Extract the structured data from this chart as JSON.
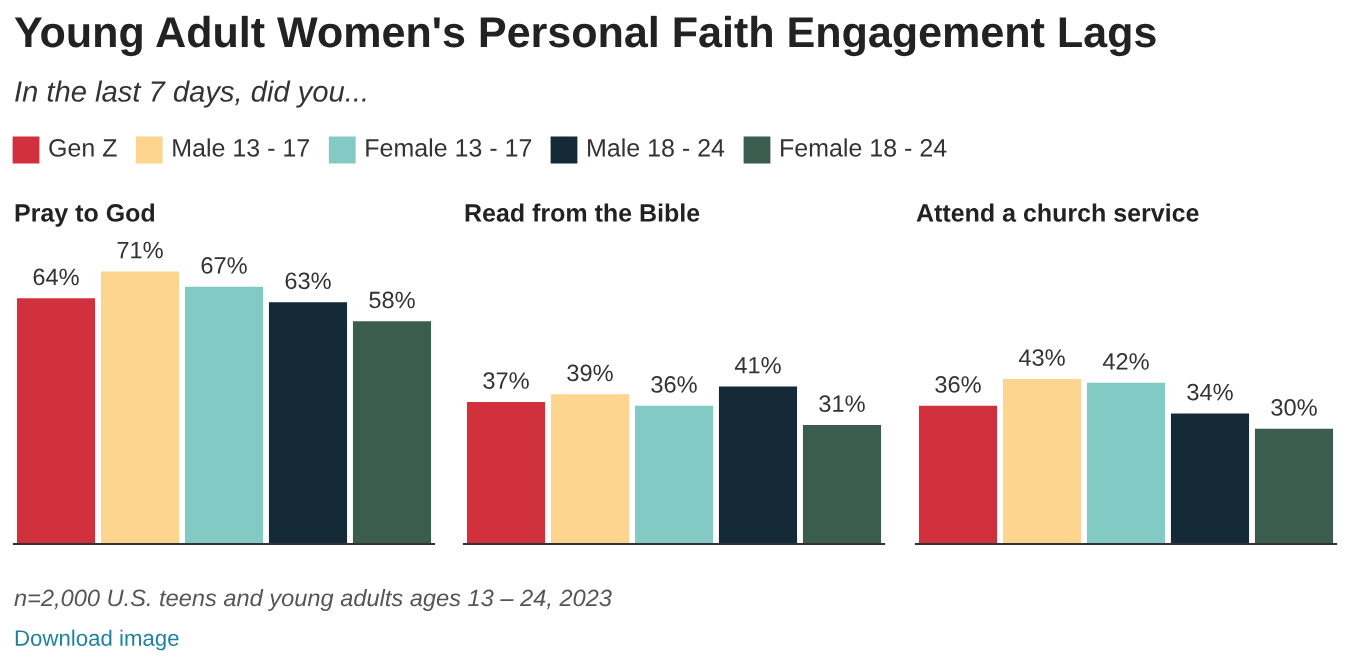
{
  "chart_data": [
    {
      "type": "other",
      "title": "Young Adult Women's Personal Faith Engagement Lags",
      "subtitle": "In the last 7 days, did you...",
      "annotations": [
        "n=2,000 U.S. teens and young adults ages 13 – 24, 2023",
        "Download image"
      ]
    },
    {
      "type": "bar",
      "title": "Pray to God",
      "categories": [
        null
      ],
      "legend": "top",
      "series": [
        {
          "name": "Gen Z",
          "color": "#d1313d",
          "values": [
            64
          ],
          "value_labels": [
            "64%"
          ]
        },
        {
          "name": "Male 13 - 17",
          "color": "#fdd58f",
          "values": [
            71
          ],
          "value_labels": [
            "71%"
          ]
        },
        {
          "name": "Female 13 - 17",
          "color": "#84cac4",
          "values": [
            67
          ],
          "value_labels": [
            "67%"
          ]
        },
        {
          "name": "Male 18 - 24",
          "color": "#142a36",
          "values": [
            63
          ],
          "value_labels": [
            "63%"
          ]
        },
        {
          "name": "Female 18 - 24",
          "color": "#3a5d4f",
          "values": [
            58
          ],
          "value_labels": [
            "58%"
          ]
        }
      ]
    },
    {
      "type": "bar",
      "title": "Read from the Bible",
      "categories": [
        null
      ],
      "series": [
        {
          "color": "#d1313d",
          "values": [
            37
          ],
          "value_labels": [
            "37%"
          ]
        },
        {
          "color": "#fdd58f",
          "values": [
            39
          ],
          "value_labels": [
            "39%"
          ]
        },
        {
          "color": "#84cac4",
          "values": [
            36
          ],
          "value_labels": [
            "36%"
          ]
        },
        {
          "color": "#142a36",
          "values": [
            41
          ],
          "value_labels": [
            "41%"
          ]
        },
        {
          "color": "#3a5d4f",
          "values": [
            31
          ],
          "value_labels": [
            "31%"
          ]
        }
      ]
    },
    {
      "type": "bar",
      "title": "Attend a church service",
      "categories": [
        null
      ],
      "series": [
        {
          "color": "#d1313d",
          "values": [
            36
          ],
          "value_labels": [
            "36%"
          ]
        },
        {
          "color": "#fdd58f",
          "values": [
            43
          ],
          "value_labels": [
            "43%"
          ]
        },
        {
          "color": "#84cac4",
          "values": [
            42
          ],
          "value_labels": [
            "42%"
          ]
        },
        {
          "color": "#142a36",
          "values": [
            34
          ],
          "value_labels": [
            "34%"
          ]
        },
        {
          "color": "#3a5d4f",
          "values": [
            30
          ],
          "value_labels": [
            "30%"
          ]
        }
      ]
    }
  ]
}
